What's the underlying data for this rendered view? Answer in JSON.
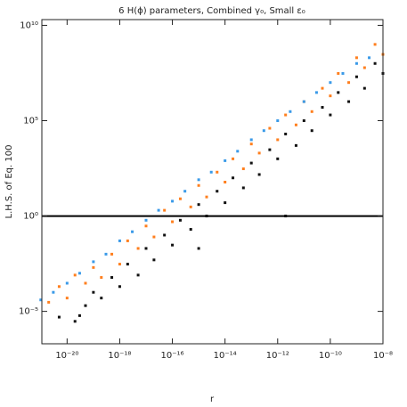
{
  "chart_data": {
    "type": "scatter",
    "title": "6 H(ϕ) parameters, Combined γ₀, Small ε₀",
    "x_label": "r",
    "y_label": "L.H.S. of Eq. 100",
    "xlog": true,
    "ylog": true,
    "xlim": [
      1.1e-21,
      1e-08
    ],
    "ylim": [
      2e-07,
      20000000000.0
    ],
    "xticks": [
      {
        "value": 1e-20,
        "label": "10⁻²⁰"
      },
      {
        "value": 1e-18,
        "label": "10⁻¹⁸"
      },
      {
        "value": 1e-16,
        "label": "10⁻¹⁶"
      },
      {
        "value": 1e-14,
        "label": "10⁻¹⁴"
      },
      {
        "value": 1e-12,
        "label": "10⁻¹²"
      },
      {
        "value": 1e-10,
        "label": "10⁻¹⁰"
      },
      {
        "value": 1e-08,
        "label": "10⁻⁸"
      }
    ],
    "yticks": [
      {
        "value": 1e-05,
        "label": "10⁻⁵"
      },
      {
        "value": 1,
        "label": "10⁰"
      },
      {
        "value": 100000,
        "label": "10⁵"
      },
      {
        "value": 10000000000,
        "label": "10¹⁰"
      }
    ],
    "hline": 1,
    "series": [
      {
        "color": "#ff7f1e",
        "x": [
          2e-21,
          5e-21,
          1e-20,
          2e-20,
          5e-20,
          1e-19,
          2e-19,
          5e-19,
          1e-18,
          2e-18,
          5e-18,
          1e-17,
          2e-17,
          5e-17,
          1e-16,
          2e-16,
          5e-16,
          1e-15,
          2e-15,
          5e-15,
          1e-14,
          2e-14,
          5e-14,
          1e-13,
          2e-13,
          5e-13,
          1e-12,
          2e-12,
          5e-12,
          1e-11,
          2e-11,
          5e-11,
          1e-10,
          2e-10,
          5e-10,
          1e-09,
          2e-09,
          5e-09,
          1e-08
        ],
        "values": [
          3e-05,
          0.0002,
          5e-05,
          0.0008,
          0.0003,
          0.002,
          0.0006,
          0.01,
          0.003,
          0.05,
          0.02,
          0.3,
          0.08,
          2,
          0.5,
          8,
          3,
          40,
          10,
          200,
          60,
          1000,
          300,
          6000,
          2000,
          40000,
          10000,
          200000,
          60000,
          1000000,
          300000,
          5000000,
          2000000,
          30000000,
          10000000,
          200000000,
          60000000,
          1000000000,
          300000000
        ]
      },
      {
        "color": "#3a9ae8",
        "x": [
          1e-21,
          3e-21,
          1e-20,
          3e-20,
          1e-19,
          3e-19,
          1e-18,
          3e-18,
          1e-17,
          3e-17,
          1e-16,
          3e-16,
          1e-15,
          3e-15,
          1e-14,
          3e-14,
          1e-13,
          3e-13,
          1e-12,
          3e-12,
          1e-11,
          3e-11,
          1e-10,
          3e-10,
          1e-09,
          3e-09
        ],
        "values": [
          4e-05,
          0.0001,
          0.0003,
          0.001,
          0.004,
          0.01,
          0.05,
          0.15,
          0.6,
          2,
          6,
          20,
          80,
          200,
          800,
          2500,
          10000,
          30000,
          100000,
          300000,
          1000000,
          3000000,
          10000000,
          30000000,
          100000000,
          200000000
        ]
      },
      {
        "color": "#111111",
        "x": [
          5e-21,
          2e-20,
          3e-20,
          5e-20,
          1e-19,
          2e-19,
          5e-19,
          1e-18,
          2e-18,
          5e-18,
          1e-17,
          2e-17,
          5e-17,
          1e-16,
          2e-16,
          5e-16,
          1e-15,
          1e-15,
          2e-15,
          5e-15,
          1e-14,
          2e-14,
          5e-14,
          1e-13,
          2e-13,
          5e-13,
          1e-12,
          2e-12,
          2e-12,
          5e-12,
          1e-11,
          2e-11,
          5e-11,
          1e-10,
          2e-10,
          5e-10,
          1e-09,
          2e-09,
          5e-09,
          1e-08
        ],
        "values": [
          5e-06,
          3e-06,
          6e-06,
          2e-05,
          0.0001,
          5e-05,
          0.0006,
          0.0002,
          0.003,
          0.0008,
          0.02,
          0.005,
          0.1,
          0.03,
          0.6,
          0.2,
          4,
          0.02,
          1,
          20,
          5,
          100,
          30,
          600,
          150,
          3000,
          1000,
          20000,
          1,
          5000,
          100000,
          30000,
          500000,
          200000,
          3000000,
          1000000,
          20000000,
          5000000,
          100000000,
          30000000
        ]
      }
    ]
  }
}
